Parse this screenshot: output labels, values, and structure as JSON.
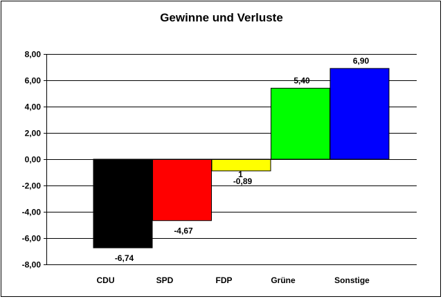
{
  "chart_data": {
    "type": "bar",
    "title": "Gewinne und Verluste",
    "xlabel": "",
    "ylabel": "",
    "categories": [
      "CDU",
      "SPD",
      "FDP",
      "Grüne",
      "Sonstige"
    ],
    "values": [
      -6.74,
      -4.67,
      -0.89,
      5.4,
      6.9
    ],
    "value_labels": [
      "-6,74",
      "-4,67",
      "-0,89",
      "5,40",
      "6,90"
    ],
    "extra_labels": [
      "",
      "",
      "1",
      "",
      ""
    ],
    "colors": [
      "#000000",
      "#ff0000",
      "#ffff00",
      "#00ff00",
      "#0000ff"
    ],
    "ylim": [
      -8,
      8
    ],
    "yticks": [
      8,
      6,
      4,
      2,
      0,
      -2,
      -4,
      -6,
      -8
    ],
    "ytick_labels": [
      "8,00",
      "6,00",
      "4,00",
      "2,00",
      "0,00",
      "-2,00",
      "-4,00",
      "-6,00",
      "-8,00"
    ],
    "grid": true,
    "legend": "none"
  }
}
